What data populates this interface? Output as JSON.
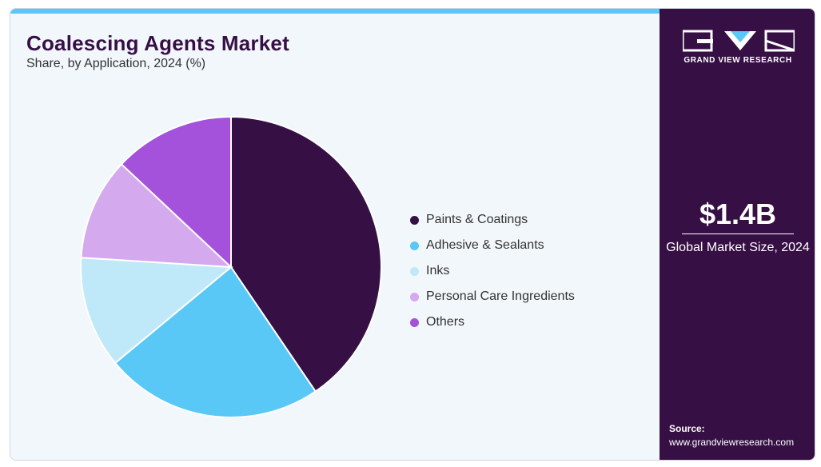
{
  "header": {
    "title": "Coalescing Agents Market",
    "subtitle": "Share, by Application, 2024 (%)"
  },
  "sidebar": {
    "brand": "GRAND VIEW RESEARCH",
    "market_size": "$1.4B",
    "market_size_label": "Global Market Size, 2024",
    "source_heading": "Source:",
    "source_url": "www.grandviewresearch.com"
  },
  "colors": {
    "accent_bar": "#59c8f6",
    "sidebar_bg": "#361045",
    "title": "#361045"
  },
  "chart_data": {
    "type": "pie",
    "title": "Coalescing Agents Market",
    "subtitle": "Share, by Application, 2024 (%)",
    "legend_position": "right",
    "slices": [
      {
        "label": "Paints & Coatings",
        "value": 40.5,
        "color": "#361045"
      },
      {
        "label": "Adhesive & Sealants",
        "value": 23.5,
        "color": "#59c8f6"
      },
      {
        "label": "Inks",
        "value": 12,
        "color": "#bfe9f9"
      },
      {
        "label": "Personal Care Ingredients",
        "value": 11,
        "color": "#d4a9ee"
      },
      {
        "label": "Others",
        "value": 13,
        "color": "#a452dc"
      }
    ]
  }
}
